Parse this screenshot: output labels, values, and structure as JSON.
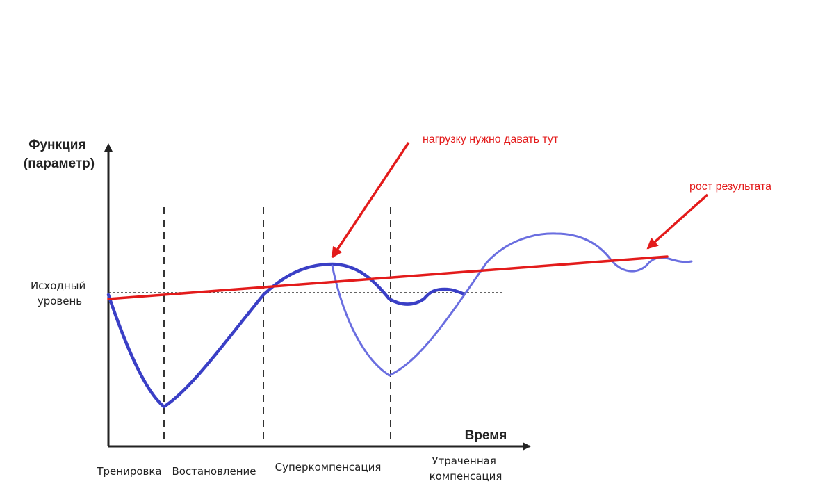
{
  "diagram": {
    "y_axis_title_lines": [
      "Функция",
      "(параметр)"
    ],
    "x_axis_title": "Время",
    "baseline_label_lines": [
      "Исходный",
      "уровень"
    ],
    "phase_labels": [
      {
        "lines": [
          "Тренировка"
        ]
      },
      {
        "lines": [
          "Востановление"
        ]
      },
      {
        "lines": [
          "Суперкомпенсация"
        ]
      },
      {
        "lines": [
          "Утраченная",
          "компенсация"
        ]
      }
    ],
    "annotations": {
      "load_point": "нагрузку нужно давать тут",
      "result_growth": "рост результата"
    },
    "colors": {
      "main_curve": "#3a3fc6",
      "alt_curve": "#6a6ee0",
      "annotation": "#e31b1b",
      "axis": "#222222",
      "guides": "#333333"
    }
  }
}
